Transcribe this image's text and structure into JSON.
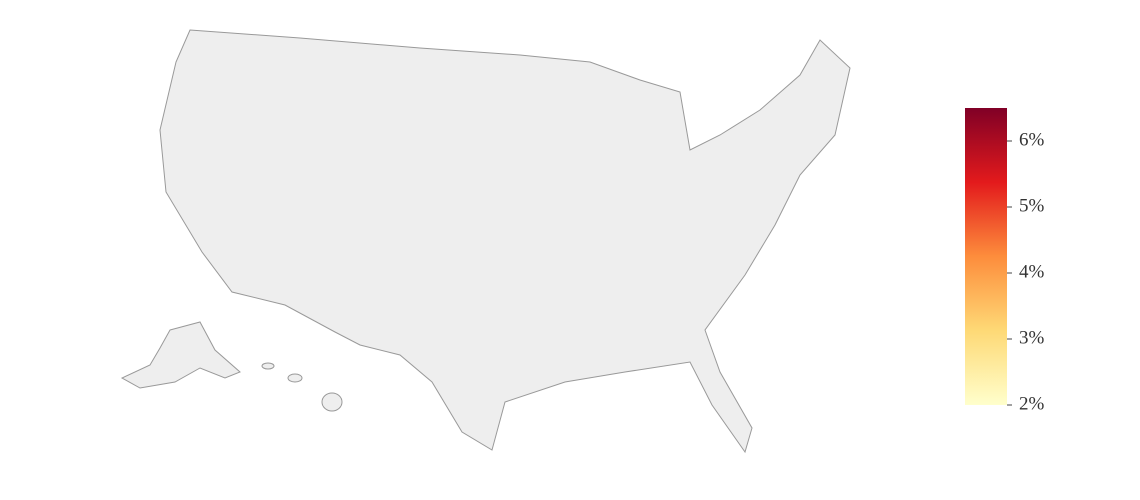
{
  "chart_data": {
    "type": "choropleth",
    "colorscale": [
      "#ffffcc",
      "#fed976",
      "#fd8d3c",
      "#e31a1c",
      "#800026"
    ],
    "colorbar_lim": [
      2,
      6.5
    ],
    "colorbar_ticks": [
      {
        "value": 2,
        "label": "2%"
      },
      {
        "value": 3,
        "label": "3%"
      },
      {
        "value": 4,
        "label": "4%"
      },
      {
        "value": 5,
        "label": "5%"
      },
      {
        "value": 6,
        "label": "6%"
      }
    ]
  }
}
